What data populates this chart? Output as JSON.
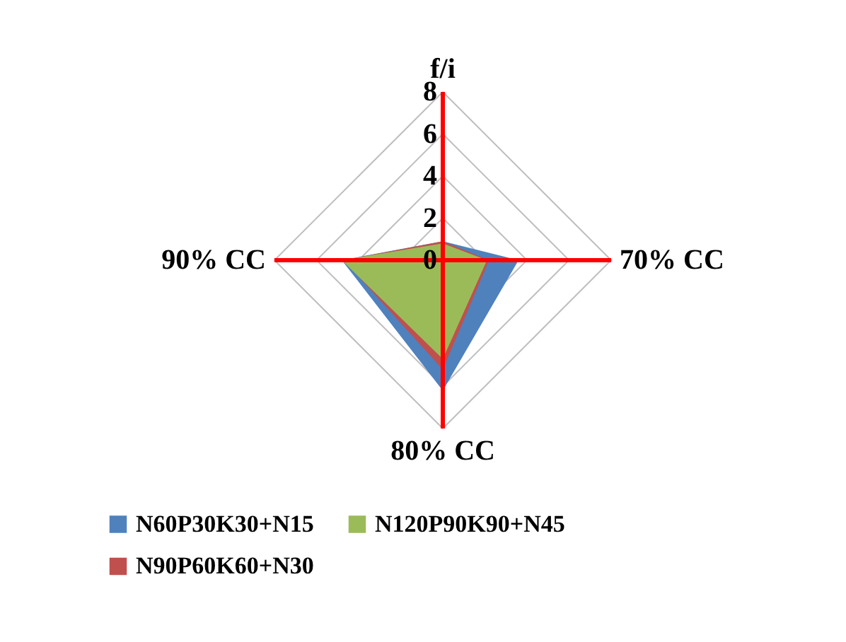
{
  "chart_data": {
    "type": "radar",
    "categories": [
      "f/i",
      "70% CC",
      "80% CC",
      "90% CC"
    ],
    "series": [
      {
        "name": "N60P30K30+N15",
        "color": "#4f81bd",
        "values": [
          0.9,
          3.6,
          6.2,
          4.8
        ]
      },
      {
        "name": "N90P60K60+N30",
        "color": "#c0504d",
        "values": [
          0.9,
          2.2,
          5.2,
          4.7
        ]
      },
      {
        "name": "N120P90K90+N45",
        "color": "#9bbb59",
        "values": [
          0.8,
          2.1,
          4.7,
          4.8
        ]
      }
    ],
    "ylim": [
      0,
      8
    ],
    "yticks": [
      0,
      2,
      4,
      6,
      8
    ],
    "grid": true,
    "legend": "bottom"
  }
}
